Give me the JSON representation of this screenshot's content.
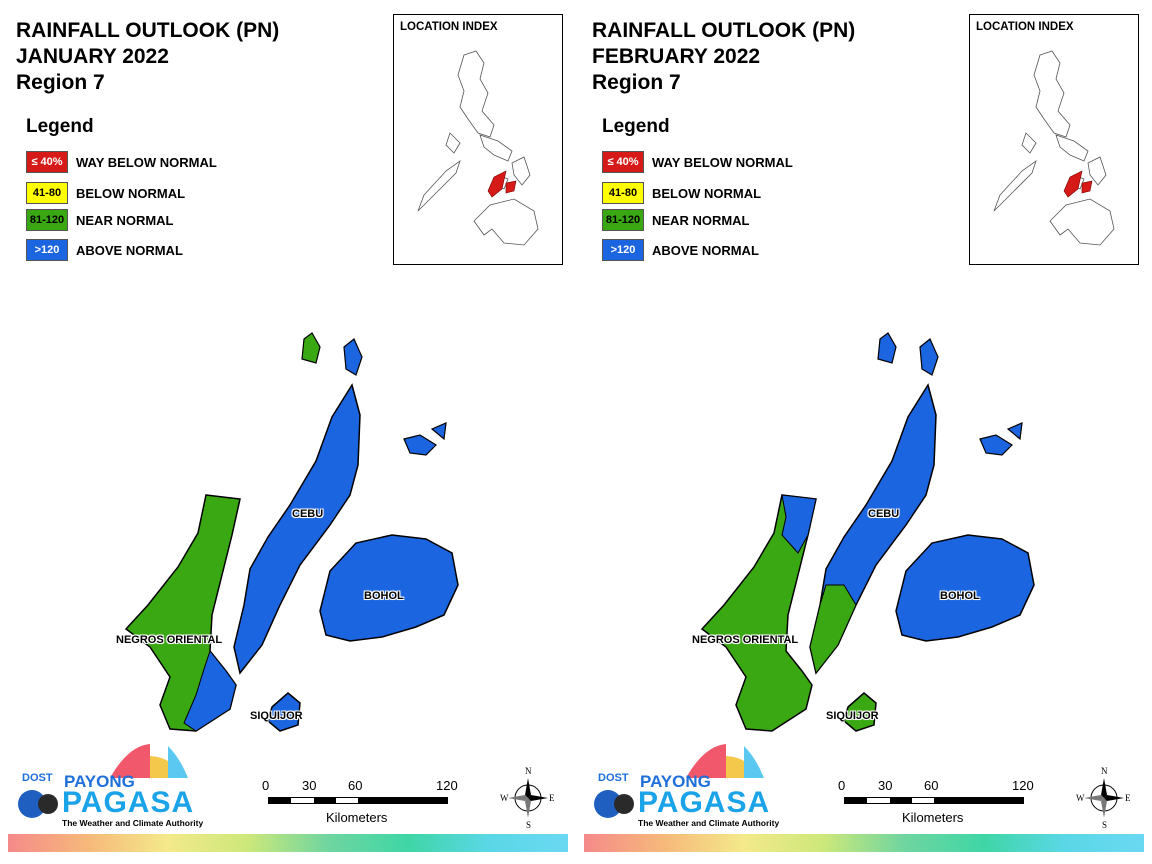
{
  "colors": {
    "way_below": "#d51a17",
    "below": "#ffff00",
    "near": "#3aa812",
    "above": "#1b65e0",
    "stripe_from": "#f58a8a",
    "stripe_to": "#6ad8f2"
  },
  "legend": {
    "title": "Legend",
    "items": [
      {
        "key": "way_below",
        "swatch": "≤ 40%",
        "label": "WAY BELOW NORMAL",
        "color": "#d51a17",
        "text_color": "#ffffff"
      },
      {
        "key": "below",
        "swatch": "41-80",
        "label": "BELOW NORMAL",
        "color": "#ffff00",
        "text_color": "#000000"
      },
      {
        "key": "near",
        "swatch": "81-120",
        "label": "NEAR NORMAL",
        "color": "#3aa812",
        "text_color": "#000000"
      },
      {
        "key": "above",
        "swatch": ">120",
        "label": "ABOVE NORMAL",
        "color": "#1b65e0",
        "text_color": "#ffffff"
      }
    ]
  },
  "panels": [
    {
      "id": "jan",
      "title_line1": "RAINFALL OUTLOOK (PN)",
      "title_line2": "JANUARY 2022",
      "title_line3": "Region 7",
      "inset_title": "LOCATION INDEX",
      "provinces": {
        "negros_oriental": {
          "label": "NEGROS ORIENTAL",
          "category": "near",
          "south_category": "above"
        },
        "cebu": {
          "label": "CEBU",
          "category": "above",
          "north_isle_category": "near"
        },
        "bohol": {
          "label": "BOHOL",
          "category": "above"
        },
        "siquijor": {
          "label": "SIQUIJOR",
          "category": "above"
        }
      }
    },
    {
      "id": "feb",
      "title_line1": "RAINFALL OUTLOOK (PN)",
      "title_line2": "FEBRUARY 2022",
      "title_line3": "Region 7",
      "inset_title": "LOCATION INDEX",
      "provinces": {
        "negros_oriental": {
          "label": "NEGROS ORIENTAL",
          "category": "near",
          "north_category": "above"
        },
        "cebu": {
          "label": "CEBU",
          "category": "above",
          "south_category": "near"
        },
        "bohol": {
          "label": "BOHOL",
          "category": "above"
        },
        "siquijor": {
          "label": "SIQUIJOR",
          "category": "near"
        }
      }
    }
  ],
  "logo": {
    "dost": "DOST",
    "payong": "PAYONG",
    "pagasa": "PAGASA",
    "tagline": "The Weather and Climate Authority"
  },
  "scale": {
    "ticks": [
      "0",
      "30",
      "60",
      "120"
    ],
    "unit": "Kilometers"
  },
  "compass": {
    "n": "N",
    "s": "S",
    "e": "E",
    "w": "W"
  }
}
